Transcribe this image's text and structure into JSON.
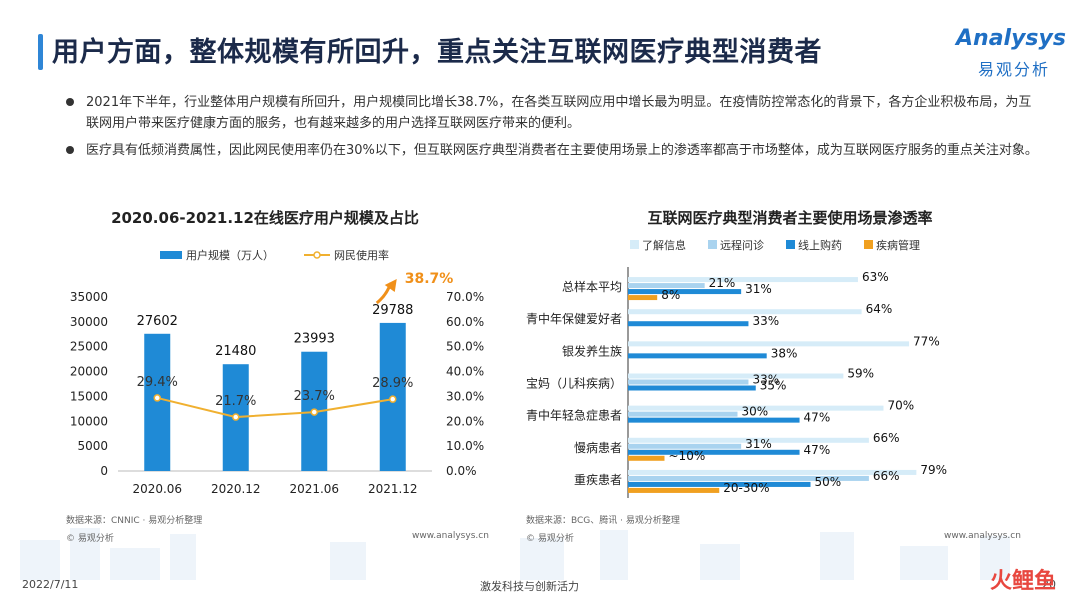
{
  "header": {
    "title": "用户方面，整体规模有所回升，重点关注互联网医疗典型消费者",
    "logo_top": "Analysys",
    "logo_bottom": "易观分析",
    "accent": "#2f86d6"
  },
  "bullets": [
    "2021年下半年，行业整体用户规模有所回升，用户规模同比增长38.7%，在各类互联网应用中增长最为明显。在疫情防控常态化的背景下，各方企业积极布局，为互联网用户带来医疗健康方面的服务，也有越来越多的用户选择互联网医疗带来的便利。",
    "医疗具有低频消费属性，因此网民使用率仍在30%以下，但互联网医疗典型消费者在主要使用场景上的渗透率都高于市场整体，成为互联网医疗服务的重点关注对象。"
  ],
  "chart_data": [
    {
      "type": "bar",
      "title": "2020.06-2021.12在线医疗用户规模及占比",
      "categories": [
        "2020.06",
        "2020.12",
        "2021.06",
        "2021.12"
      ],
      "series": [
        {
          "name": "用户规模（万人）",
          "type": "bar",
          "values": [
            27602,
            21480,
            23993,
            29788
          ],
          "labels": [
            "27602",
            "21480",
            "23993",
            "29788"
          ],
          "color": "#1f8ad6"
        },
        {
          "name": "网民使用率",
          "type": "line",
          "values": [
            29.4,
            21.7,
            23.7,
            28.9
          ],
          "labels": [
            "29.4%",
            "21.7%",
            "23.7%",
            "28.9%"
          ],
          "color": "#f0b030"
        }
      ],
      "y_left": {
        "ylim": [
          0,
          35000
        ],
        "ticks": [
          "0",
          "5000",
          "10000",
          "15000",
          "20000",
          "25000",
          "30000",
          "35000"
        ]
      },
      "y_right": {
        "ylim": [
          0,
          70
        ],
        "ticks": [
          "0.0%",
          "10.0%",
          "20.0%",
          "30.0%",
          "40.0%",
          "50.0%",
          "60.0%",
          "70.0%"
        ]
      },
      "annotation": "38.7%",
      "annotation_color": "#f0901a",
      "legend_position": "top",
      "source": "数据来源：CNNIC · 易观分析整理",
      "copyright": "© 易观分析",
      "website": "www.analysys.cn"
    },
    {
      "type": "bar",
      "orientation": "horizontal",
      "title": "互联网医疗典型消费者主要使用场景渗透率",
      "categories": [
        "总样本平均",
        "青中年保健爱好者",
        "银发养生族",
        "宝妈（儿科疾病）",
        "青中年轻急症患者",
        "慢病患者",
        "重疾患者"
      ],
      "series": [
        {
          "name": "了解信息",
          "color": "#d6ecf8",
          "values": [
            63,
            64,
            77,
            59,
            70,
            66,
            79
          ],
          "labels": [
            "63%",
            "64%",
            "77%",
            "59%",
            "70%",
            "66%",
            "79%"
          ]
        },
        {
          "name": "远程问诊",
          "color": "#a9d3ef",
          "values": [
            21,
            null,
            null,
            33,
            30,
            31,
            66
          ],
          "labels": [
            "21%",
            "",
            "",
            "33%",
            "30%",
            "31%",
            "66%"
          ]
        },
        {
          "name": "线上购药",
          "color": "#1f8ad6",
          "values": [
            31,
            33,
            38,
            35,
            47,
            47,
            50
          ],
          "labels": [
            "31%",
            "33%",
            "38%",
            "35%",
            "47%",
            "47%",
            "50%"
          ]
        },
        {
          "name": "疾病管理",
          "color": "#f0a020",
          "values": [
            8,
            null,
            null,
            null,
            null,
            10,
            25
          ],
          "labels": [
            "8%",
            "",
            "",
            "",
            "",
            "~10%",
            "20-30%"
          ]
        }
      ],
      "legend_position": "top",
      "source": "数据来源：BCG、腾讯 · 易观分析整理",
      "copyright": "© 易观分析",
      "website": "www.analysys.cn"
    }
  ],
  "footer": {
    "date": "2022/7/11",
    "slogan": "激发科技与创新活力",
    "page": "20",
    "watermark": "火鲤鱼"
  }
}
